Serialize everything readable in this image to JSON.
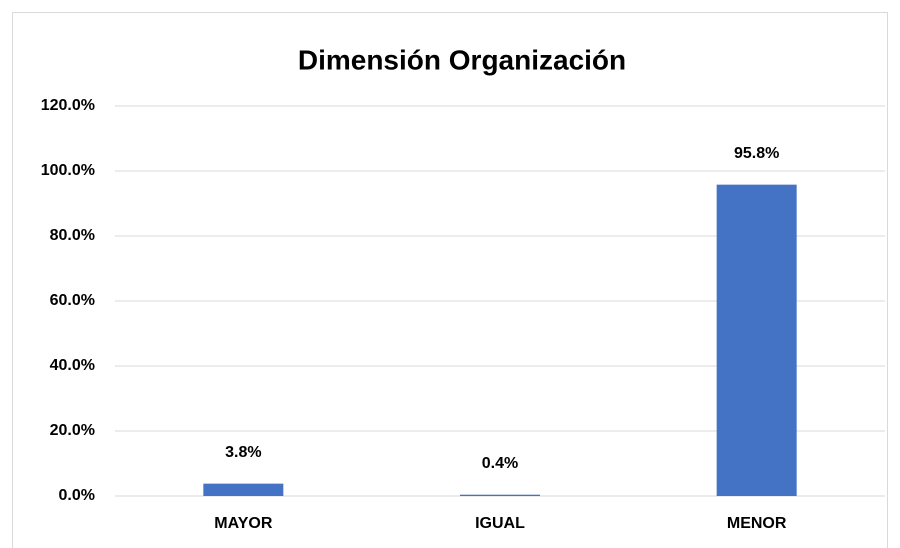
{
  "chart_data": {
    "type": "bar",
    "title": "Dimensión Organización",
    "categories": [
      "MAYOR",
      "IGUAL",
      "MENOR"
    ],
    "values": [
      3.8,
      0.4,
      95.8
    ],
    "value_labels": [
      "3.8%",
      "0.4%",
      "95.8%"
    ],
    "color": "#4472c4",
    "ylim": [
      0,
      120
    ],
    "yticks": [
      {
        "value": 0,
        "label": "0.0%"
      },
      {
        "value": 20,
        "label": "20.0%"
      },
      {
        "value": 40,
        "label": "40.0%"
      },
      {
        "value": 60,
        "label": "60.0%"
      },
      {
        "value": 80,
        "label": "80.0%"
      },
      {
        "value": 100,
        "label": "100.0%"
      },
      {
        "value": 120,
        "label": "120.0%"
      }
    ],
    "grid": true
  }
}
